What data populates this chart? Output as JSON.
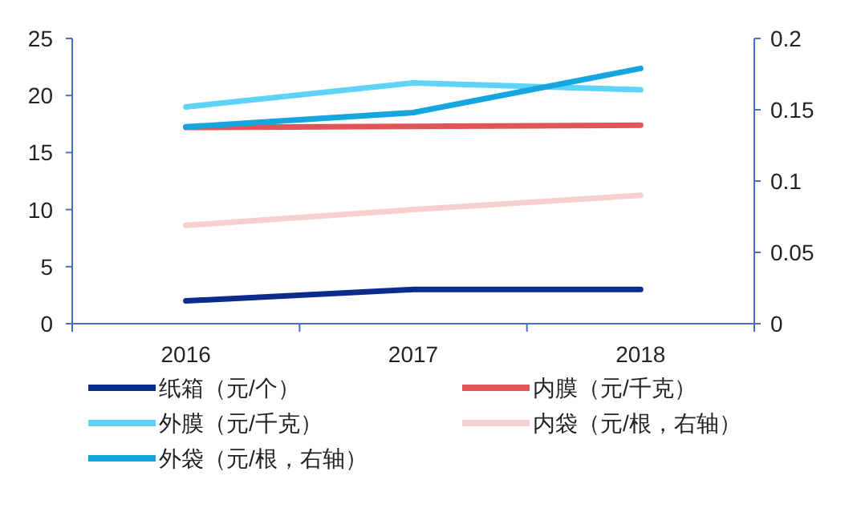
{
  "chart_data": {
    "type": "line",
    "categories": [
      "2016",
      "2017",
      "2018"
    ],
    "series": [
      {
        "name": "纸箱（元/个）",
        "color": "#0b2c8c",
        "values": [
          2,
          3,
          3
        ]
      },
      {
        "name": "内膜（元/千克）",
        "color": "#e05555",
        "values": [
          17.2,
          17.3,
          17.4
        ]
      },
      {
        "name": "外膜（元/千克）",
        "color": "#5fd3f7",
        "values": [
          19,
          21.1,
          20.5
        ]
      },
      {
        "name": "内袋（元/根，右轴）",
        "color": "#f7cfcf",
        "values": [
          0.069,
          0.08,
          0.09
        ],
        "axis": "y2"
      },
      {
        "name": "外袋（元/根，右轴）",
        "color": "#16a6df",
        "values": [
          0.138,
          0.148,
          0.179
        ],
        "axis": "y2"
      }
    ],
    "ylim": [
      0,
      25
    ],
    "yticks": [
      0,
      5,
      10,
      15,
      20,
      25
    ],
    "y2lim": [
      0,
      0.2
    ],
    "y2ticks": [
      0,
      0.05,
      0.1,
      0.15,
      0.2
    ],
    "legend": "bottom",
    "grid": false,
    "marker": "none"
  }
}
